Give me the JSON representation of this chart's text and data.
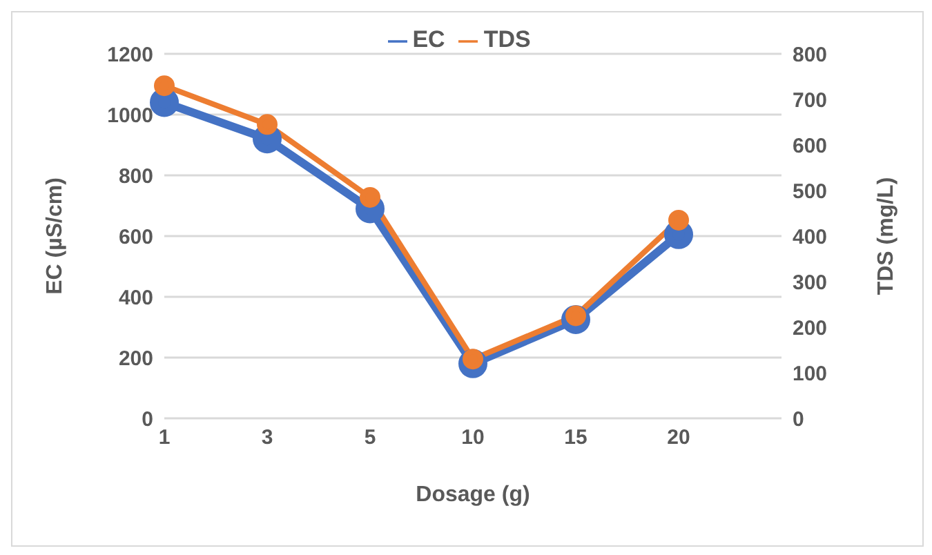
{
  "chart_data": {
    "type": "line",
    "xlabel": "Dosage (g)",
    "ylabel": "EC (µS/cm)",
    "y2label": "TDS (mg/L)",
    "categories": [
      "1",
      "3",
      "5",
      "10",
      "15",
      "20",
      null
    ],
    "series": [
      {
        "name": "EC",
        "color": "#4472c4",
        "values": [
          1040,
          920,
          690,
          180,
          325,
          605,
          null
        ]
      },
      {
        "name": "TDS",
        "color": "#ed7d31",
        "axis": "y2",
        "values": [
          730,
          645,
          485,
          130,
          225,
          435,
          null
        ]
      }
    ],
    "ylim": [
      0,
      1200
    ],
    "yticks": [
      0,
      200,
      400,
      600,
      800,
      1000,
      1200
    ],
    "y2lim": [
      0,
      800
    ],
    "y2ticks": [
      0,
      100,
      200,
      300,
      400,
      500,
      600,
      700,
      800
    ],
    "grid": "y",
    "legend": "top",
    "marker": "circle",
    "line_style": "solid"
  }
}
